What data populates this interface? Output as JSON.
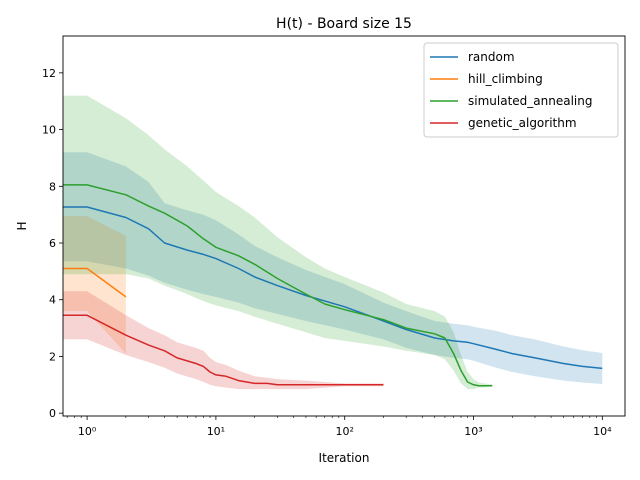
{
  "chart_data": {
    "type": "line",
    "title": "H(t) - Board size 15",
    "xlabel": "Iteration",
    "ylabel": "H",
    "xscale": "log",
    "xlim": [
      0.65,
      15000
    ],
    "ylim": [
      -0.1,
      13.3
    ],
    "yticks": [
      0,
      2,
      4,
      6,
      8,
      10,
      12
    ],
    "ytick_labels": [
      "0",
      "2",
      "4",
      "6",
      "8",
      "10",
      "12"
    ],
    "xticks": [
      1,
      10,
      100,
      1000,
      10000
    ],
    "xtick_labels": [
      "10⁰",
      "10¹",
      "10²",
      "10³",
      "10⁴"
    ],
    "legend_position": "top-right",
    "series": [
      {
        "name": "random",
        "color": "#1f77b4",
        "x": [
          0.65,
          1,
          2,
          3,
          4,
          6,
          8,
          10,
          15,
          20,
          30,
          50,
          100,
          200,
          300,
          500,
          700,
          900,
          1000,
          1500,
          2000,
          3000,
          5000,
          7000,
          10000
        ],
        "y": [
          7.27,
          7.27,
          6.9,
          6.5,
          6.0,
          5.75,
          5.6,
          5.45,
          5.1,
          4.8,
          4.5,
          4.15,
          3.75,
          3.25,
          2.95,
          2.65,
          2.55,
          2.5,
          2.45,
          2.25,
          2.1,
          1.95,
          1.75,
          1.65,
          1.58
        ],
        "lower": [
          5.35,
          5.35,
          5.1,
          4.85,
          4.6,
          4.35,
          4.2,
          4.1,
          3.9,
          3.7,
          3.5,
          3.25,
          2.95,
          2.6,
          2.3,
          2.05,
          1.95,
          1.9,
          1.85,
          1.6,
          1.45,
          1.3,
          1.15,
          1.08,
          1.03
        ],
        "upper": [
          9.2,
          9.2,
          8.7,
          8.15,
          7.4,
          7.15,
          7.0,
          6.8,
          6.3,
          5.9,
          5.5,
          5.05,
          4.55,
          3.9,
          3.6,
          3.25,
          3.15,
          3.1,
          3.05,
          2.9,
          2.75,
          2.6,
          2.35,
          2.22,
          2.12
        ]
      },
      {
        "name": "hill_climbing",
        "color": "#ff7f0e",
        "x": [
          0.65,
          1,
          2
        ],
        "y": [
          5.1,
          5.1,
          4.1
        ],
        "lower": [
          3.6,
          3.6,
          2.1
        ],
        "upper": [
          6.95,
          6.95,
          6.25
        ]
      },
      {
        "name": "simulated_annealing",
        "color": "#2ca02c",
        "x": [
          0.65,
          1,
          2,
          3,
          4,
          6,
          8,
          10,
          15,
          20,
          30,
          50,
          70,
          100,
          200,
          300,
          500,
          600,
          700,
          800,
          900,
          1000,
          1100,
          1200,
          1400
        ],
        "y": [
          8.05,
          8.05,
          7.7,
          7.3,
          7.05,
          6.6,
          6.15,
          5.85,
          5.55,
          5.25,
          4.75,
          4.2,
          3.85,
          3.65,
          3.3,
          3.0,
          2.8,
          2.65,
          2.1,
          1.5,
          1.1,
          1.0,
          0.97,
          0.97,
          0.97
        ],
        "lower": [
          4.9,
          4.9,
          4.9,
          4.75,
          4.5,
          4.2,
          3.95,
          3.8,
          3.6,
          3.4,
          3.15,
          2.85,
          2.65,
          2.55,
          2.35,
          2.2,
          2.05,
          1.9,
          1.5,
          1.05,
          0.85,
          0.85,
          0.9,
          0.9,
          0.95
        ],
        "upper": [
          11.2,
          11.2,
          10.4,
          9.8,
          9.3,
          8.7,
          8.2,
          7.8,
          7.3,
          6.9,
          6.2,
          5.5,
          5.1,
          4.8,
          4.25,
          3.85,
          3.6,
          3.4,
          2.85,
          2.05,
          1.45,
          1.2,
          1.08,
          1.05,
          1.02
        ]
      },
      {
        "name": "genetic_algorithm",
        "color": "#d62728",
        "x": [
          0.65,
          1,
          2,
          3,
          4,
          5,
          7,
          8,
          9,
          10,
          12,
          15,
          20,
          25,
          30,
          50,
          100,
          200
        ],
        "y": [
          3.45,
          3.45,
          2.75,
          2.4,
          2.2,
          1.95,
          1.75,
          1.65,
          1.45,
          1.35,
          1.3,
          1.15,
          1.05,
          1.05,
          1.0,
          1.0,
          1.0,
          1.0
        ],
        "lower": [
          2.6,
          2.6,
          2.05,
          1.8,
          1.6,
          1.4,
          1.2,
          1.1,
          1.0,
          0.95,
          0.9,
          0.85,
          0.85,
          0.85,
          0.85,
          0.85,
          0.95,
          0.95
        ],
        "upper": [
          4.3,
          4.3,
          3.45,
          3.0,
          2.75,
          2.5,
          2.3,
          2.2,
          1.95,
          1.8,
          1.7,
          1.5,
          1.3,
          1.25,
          1.2,
          1.15,
          1.05,
          1.05
        ]
      }
    ]
  }
}
